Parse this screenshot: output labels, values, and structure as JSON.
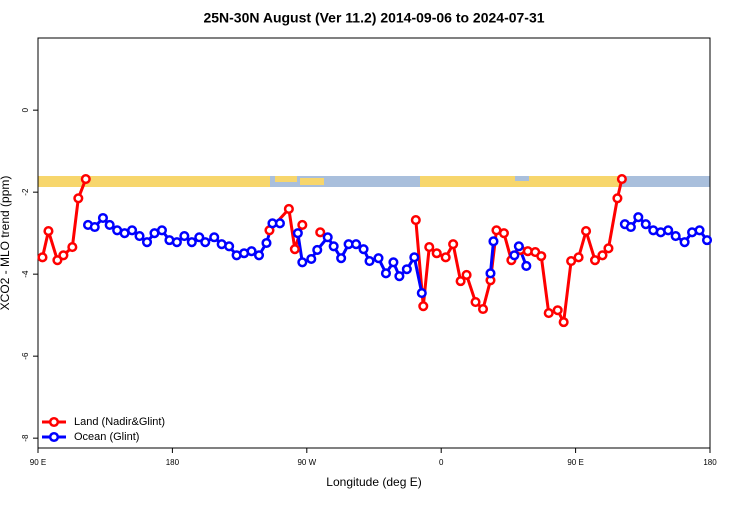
{
  "chart_data": {
    "type": "line",
    "title": "25N-30N August (Ver 11.2)   2014-09-06 to 2024-07-31",
    "xlabel": "Longitude (deg E)",
    "ylabel": "XCO2 - MLO trend (ppm)",
    "xlim": [
      90,
      540
    ],
    "ylim": [
      -8.24,
      1.76
    ],
    "xticks": [
      {
        "value": 90,
        "label": "90 E"
      },
      {
        "value": 180,
        "label": "180"
      },
      {
        "value": 270,
        "label": "90 W"
      },
      {
        "value": 360,
        "label": "0"
      },
      {
        "value": 450,
        "label": "90 E"
      },
      {
        "value": 540,
        "label": "180"
      }
    ],
    "yticks": [
      0,
      -2,
      -4,
      -6,
      -8
    ],
    "legend": "bottom-left",
    "series": [
      {
        "name": "Land (Nadir&Glint)",
        "color": "#ff0000",
        "x": [
          93,
          97,
          103,
          107,
          113,
          117,
          122,
          null,
          245,
          258,
          262,
          267,
          null,
          279,
          null,
          343,
          348,
          352,
          357,
          363,
          368,
          373,
          377,
          383,
          388,
          393,
          397,
          402,
          407,
          413,
          418,
          423,
          427,
          432,
          438,
          442,
          447,
          452,
          457,
          463,
          468,
          472,
          478,
          481
        ],
        "values": [
          -3.59,
          -2.95,
          -3.66,
          -3.54,
          -3.34,
          -2.15,
          -1.68,
          null,
          -2.93,
          -2.41,
          -3.39,
          -2.8,
          null,
          -2.98,
          null,
          -2.68,
          -4.78,
          -3.34,
          -3.49,
          -3.59,
          -3.27,
          -4.17,
          -4.02,
          -4.68,
          -4.85,
          -4.15,
          -2.93,
          -3.0,
          -3.66,
          -3.41,
          -3.44,
          -3.46,
          -3.56,
          -4.95,
          -4.88,
          -5.17,
          -3.68,
          -3.59,
          -2.95,
          -3.66,
          -3.54,
          -3.37,
          -2.15,
          -1.68
        ]
      },
      {
        "name": "Ocean (Glint)",
        "color": "#0000ff",
        "x": [
          123.5,
          128,
          133.5,
          138,
          143,
          148,
          153,
          158,
          163,
          168,
          173,
          178,
          183,
          188,
          193,
          198,
          202,
          208,
          213,
          218,
          223,
          228,
          233,
          238,
          243,
          247,
          252,
          null,
          264,
          267,
          273,
          277,
          284,
          288,
          293,
          298,
          303,
          308,
          312,
          318,
          323,
          328,
          332,
          337,
          342,
          347,
          null,
          393,
          395,
          null,
          409,
          412,
          417,
          null,
          483,
          487,
          492,
          497,
          502,
          507,
          512,
          517,
          523,
          528,
          533,
          538
        ],
        "values": [
          -2.8,
          -2.85,
          -2.63,
          -2.8,
          -2.93,
          -3.0,
          -2.93,
          -3.07,
          -3.22,
          -3.0,
          -2.93,
          -3.17,
          -3.22,
          -3.07,
          -3.22,
          -3.1,
          -3.22,
          -3.1,
          -3.27,
          -3.32,
          -3.54,
          -3.49,
          -3.44,
          -3.54,
          -3.24,
          -2.76,
          -2.76,
          null,
          -3.0,
          -3.71,
          -3.63,
          -3.41,
          -3.1,
          -3.32,
          -3.61,
          -3.27,
          -3.27,
          -3.39,
          -3.68,
          -3.61,
          -3.98,
          -3.71,
          -4.05,
          -3.88,
          -3.59,
          -4.46,
          null,
          -3.98,
          -3.2,
          null,
          -3.54,
          -3.32,
          -3.8,
          null,
          -2.78,
          -2.85,
          -2.61,
          -2.78,
          -2.93,
          -2.98,
          -2.93,
          -3.07,
          -3.22,
          -2.98,
          -2.93,
          -3.17
        ]
      }
    ]
  }
}
